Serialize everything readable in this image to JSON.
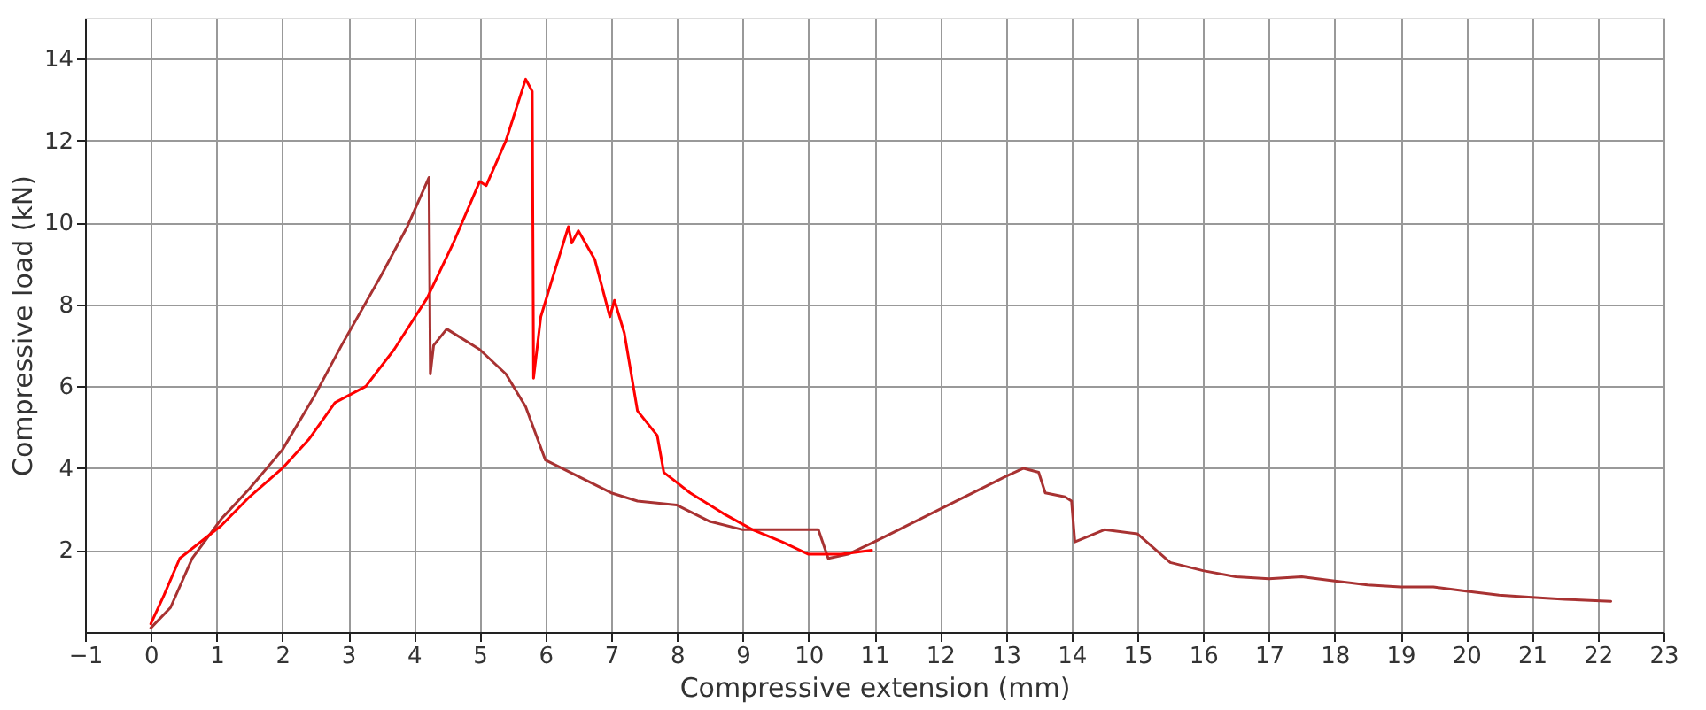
{
  "chart_data": {
    "type": "line",
    "xlabel": "Compressive extension (mm)",
    "ylabel": "Compressive load (kN)",
    "xlim": [
      -1,
      23
    ],
    "xticks": [
      -1,
      0,
      1,
      2,
      3,
      4,
      5,
      6,
      7,
      8,
      9,
      10,
      11,
      12,
      13,
      14,
      15,
      16,
      17,
      18,
      19,
      20,
      21,
      22,
      23
    ],
    "ylim": [
      0,
      15
    ],
    "yticks": [
      2,
      4,
      6,
      8,
      10,
      12,
      14
    ],
    "grid": true,
    "marker": "none",
    "line_style": "solid",
    "series": [
      {
        "color": "#a83232",
        "x": [
          0,
          0.3,
          0.63,
          1.07,
          1.5,
          2.0,
          2.5,
          2.9,
          3.5,
          3.9,
          4.23,
          4.25,
          4.3,
          4.5,
          5.0,
          5.4,
          5.7,
          6.0,
          6.5,
          7.0,
          7.4,
          8.0,
          8.5,
          9.0,
          9.5,
          10.0,
          10.15,
          10.3,
          10.6,
          11.0,
          11.5,
          12.0,
          12.5,
          13.0,
          13.27,
          13.5,
          13.6,
          13.9,
          14.0,
          14.05,
          14.5,
          15.0,
          15.5,
          16.0,
          16.5,
          17.0,
          17.5,
          18.0,
          18.5,
          19.0,
          19.5,
          20.0,
          20.5,
          21.0,
          21.5,
          22.2
        ],
        "values": [
          0.1,
          0.6,
          1.8,
          2.76,
          3.5,
          4.45,
          5.8,
          7.0,
          8.7,
          9.9,
          11.1,
          6.3,
          7.0,
          7.4,
          6.9,
          6.3,
          5.5,
          4.2,
          3.8,
          3.4,
          3.2,
          3.1,
          2.7,
          2.5,
          2.5,
          2.5,
          2.5,
          1.8,
          1.9,
          2.2,
          2.6,
          3.0,
          3.4,
          3.8,
          4.0,
          3.9,
          3.4,
          3.3,
          3.2,
          2.2,
          2.5,
          2.4,
          1.7,
          1.5,
          1.35,
          1.3,
          1.35,
          1.25,
          1.15,
          1.1,
          1.1,
          1.0,
          0.9,
          0.85,
          0.8,
          0.75
        ]
      },
      {
        "color": "#ff0000",
        "x": [
          0,
          0.2,
          0.44,
          1.07,
          1.5,
          2.0,
          2.4,
          2.8,
          3.27,
          3.7,
          4.2,
          4.6,
          5.0,
          5.1,
          5.4,
          5.7,
          5.8,
          5.82,
          5.93,
          6.1,
          6.35,
          6.4,
          6.5,
          6.75,
          6.98,
          7.05,
          7.2,
          7.4,
          7.7,
          7.8,
          8.2,
          8.7,
          9.15,
          9.6,
          10.0,
          10.5,
          10.96
        ],
        "values": [
          0.2,
          0.9,
          1.8,
          2.6,
          3.3,
          4.0,
          4.7,
          5.6,
          6.0,
          6.9,
          8.15,
          9.5,
          11.0,
          10.9,
          12.0,
          13.5,
          13.2,
          6.2,
          7.7,
          8.6,
          9.9,
          9.5,
          9.8,
          9.1,
          7.7,
          8.1,
          7.3,
          5.4,
          4.8,
          3.9,
          3.4,
          2.9,
          2.5,
          2.2,
          1.9,
          1.9,
          2.0
        ]
      }
    ]
  }
}
